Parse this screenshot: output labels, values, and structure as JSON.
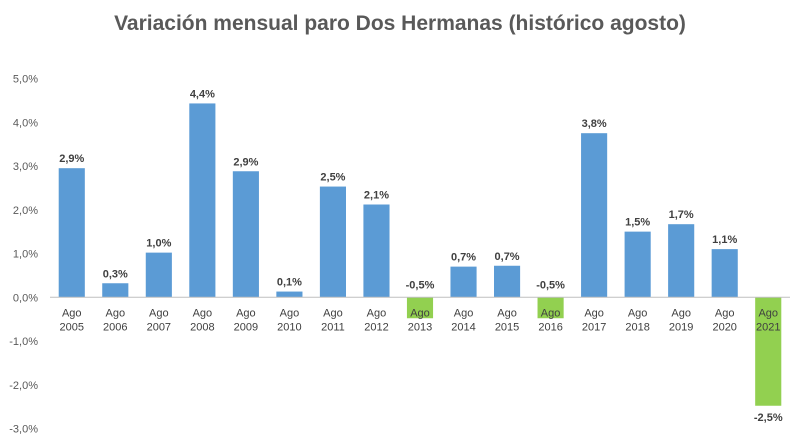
{
  "chart_data": {
    "type": "bar",
    "title": "Variación mensual paro Dos Hermanas (histórico agosto)",
    "xlabel": "",
    "ylabel": "",
    "ylim": [
      -3.0,
      5.0
    ],
    "ytick_values": [
      -3.0,
      -2.0,
      -1.0,
      0.0,
      1.0,
      2.0,
      3.0,
      4.0,
      5.0
    ],
    "ytick_labels": [
      "-3,0%",
      "-2,0%",
      "-1,0%",
      "0,0%",
      "1,0%",
      "2,0%",
      "3,0%",
      "4,0%",
      "5,0%"
    ],
    "grid": false,
    "legend": "none",
    "categories": [
      [
        "Ago",
        "2005"
      ],
      [
        "Ago",
        "2006"
      ],
      [
        "Ago",
        "2007"
      ],
      [
        "Ago",
        "2008"
      ],
      [
        "Ago",
        "2009"
      ],
      [
        "Ago",
        "2010"
      ],
      [
        "Ago",
        "2011"
      ],
      [
        "Ago",
        "2012"
      ],
      [
        "Ago",
        "2013"
      ],
      [
        "Ago",
        "2014"
      ],
      [
        "Ago",
        "2015"
      ],
      [
        "Ago",
        "2016"
      ],
      [
        "Ago",
        "2017"
      ],
      [
        "Ago",
        "2018"
      ],
      [
        "Ago",
        "2019"
      ],
      [
        "Ago",
        "2020"
      ],
      [
        "Ago",
        "2021"
      ]
    ],
    "values": [
      2.95,
      0.32,
      1.02,
      4.43,
      2.88,
      0.13,
      2.53,
      2.12,
      -0.48,
      0.7,
      0.72,
      -0.48,
      3.75,
      1.5,
      1.67,
      1.1,
      -2.48
    ],
    "data_labels": [
      "2,9%",
      "0,3%",
      "1,0%",
      "4,4%",
      "2,9%",
      "0,1%",
      "2,5%",
      "2,1%",
      "-0,5%",
      "0,7%",
      "0,7%",
      "-0,5%",
      "3,8%",
      "1,5%",
      "1,7%",
      "1,1%",
      "-2,5%"
    ],
    "colors": {
      "positive": "#5b9bd5",
      "negative": "#92d050",
      "axis": "#bfbfbf",
      "text": "#404040"
    }
  }
}
